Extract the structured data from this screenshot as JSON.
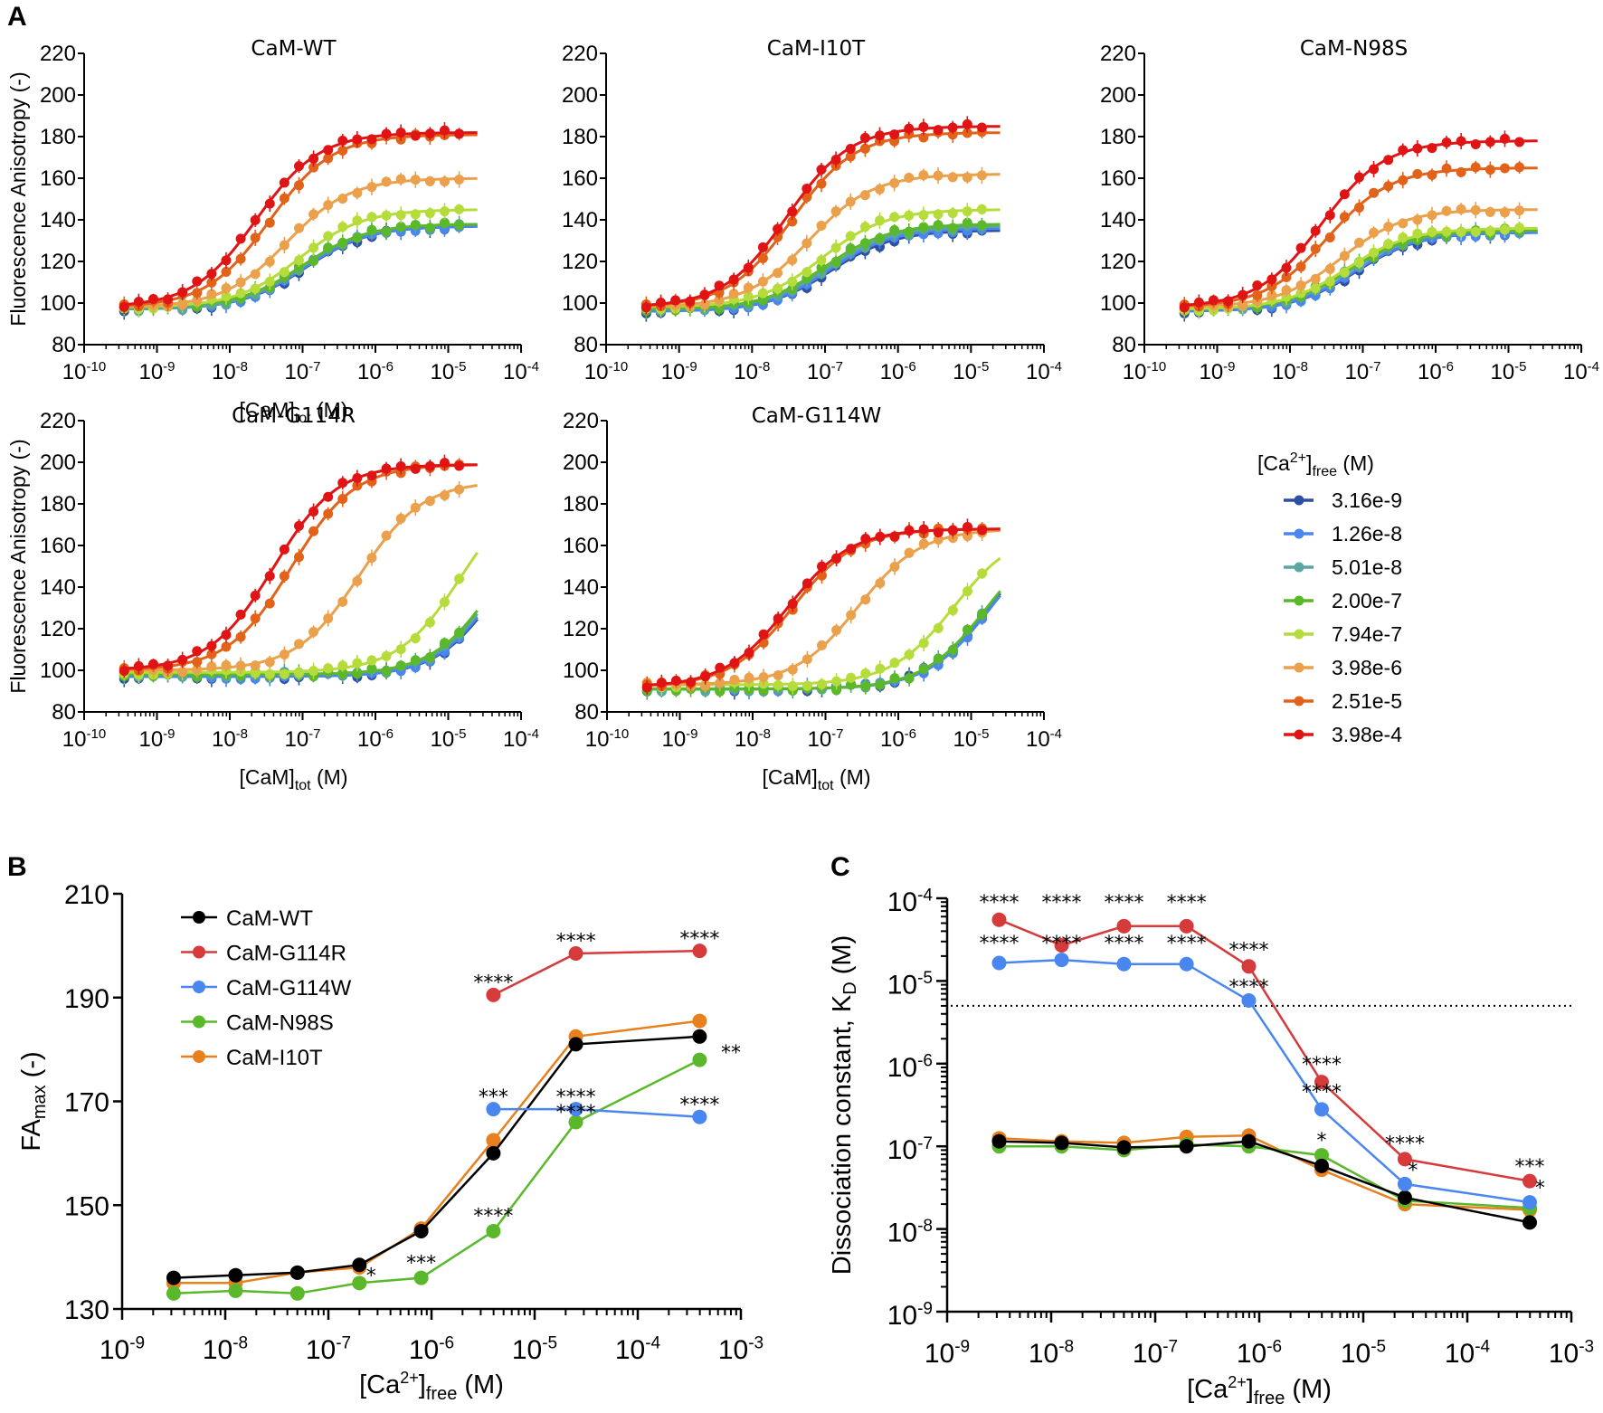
{
  "panel_labels": {
    "a": "A",
    "b": "B",
    "c": "C"
  },
  "legend_A": {
    "title_main": "[Ca",
    "title_sup": "2+",
    "title_close": "]",
    "title_sub": "free",
    "title_unit": " (M)",
    "items": [
      {
        "label": "3.16e-9",
        "color": "#2f4fa2"
      },
      {
        "label": "1.26e-8",
        "color": "#4a86f0"
      },
      {
        "label": "5.01e-8",
        "color": "#5aa6a0"
      },
      {
        "label": "2.00e-7",
        "color": "#5ab82a"
      },
      {
        "label": "7.94e-7",
        "color": "#b5dc3a"
      },
      {
        "label": "3.98e-6",
        "color": "#eba04c"
      },
      {
        "label": "2.51e-5",
        "color": "#e2621a"
      },
      {
        "label": "3.98e-4",
        "color": "#e01414"
      }
    ]
  },
  "chart_data": [
    {
      "type": "line",
      "panel": "A",
      "title": "CaM-WT",
      "xlabel": "[CaM]tot (M)",
      "ylabel": "Fluorescence Anisotropy (-)",
      "xscale": "log",
      "xlim": [
        1e-10,
        0.0001
      ],
      "ylim": [
        80,
        220
      ],
      "yticks": [
        80,
        100,
        120,
        140,
        160,
        180,
        200,
        220
      ],
      "xticks": [
        "10^-10",
        "10^-9",
        "10^-8",
        "10^-7",
        "10^-6",
        "10^-5",
        "10^-4"
      ],
      "series_fit": [
        {
          "ca_free": "3.16e-9",
          "bottom": 97,
          "top": 137,
          "ec50": 1.1e-07
        },
        {
          "ca_free": "1.26e-8",
          "bottom": 97,
          "top": 137,
          "ec50": 1.05e-07
        },
        {
          "ca_free": "5.01e-8",
          "bottom": 97,
          "top": 138,
          "ec50": 1e-07
        },
        {
          "ca_free": "2.00e-7",
          "bottom": 98,
          "top": 138,
          "ec50": 1e-07
        },
        {
          "ca_free": "7.94e-7",
          "bottom": 98,
          "top": 145,
          "ec50": 9e-08
        },
        {
          "ca_free": "3.98e-6",
          "bottom": 98,
          "top": 160,
          "ec50": 6e-08
        },
        {
          "ca_free": "2.51e-5",
          "bottom": 98,
          "top": 181,
          "ec50": 3.5e-08
        },
        {
          "ca_free": "3.98e-4",
          "bottom": 98,
          "top": 182,
          "ec50": 2.3e-08
        }
      ]
    },
    {
      "type": "line",
      "panel": "A",
      "title": "CaM-I10T",
      "xlabel": "",
      "ylabel": "",
      "xscale": "log",
      "xlim": [
        1e-10,
        0.0001
      ],
      "ylim": [
        80,
        220
      ],
      "yticks": [
        80,
        100,
        120,
        140,
        160,
        180,
        200,
        220
      ],
      "xticks": [
        "10^-10",
        "10^-9",
        "10^-8",
        "10^-7",
        "10^-6",
        "10^-5",
        "10^-4"
      ],
      "series_fit": [
        {
          "ca_free": "3.16e-9",
          "bottom": 96,
          "top": 135,
          "ec50": 1.2e-07
        },
        {
          "ca_free": "1.26e-8",
          "bottom": 96,
          "top": 136,
          "ec50": 1.15e-07
        },
        {
          "ca_free": "5.01e-8",
          "bottom": 97,
          "top": 137,
          "ec50": 1.1e-07
        },
        {
          "ca_free": "2.00e-7",
          "bottom": 97,
          "top": 138,
          "ec50": 1e-07
        },
        {
          "ca_free": "7.94e-7",
          "bottom": 98,
          "top": 145,
          "ec50": 9e-08
        },
        {
          "ca_free": "3.98e-6",
          "bottom": 98,
          "top": 162,
          "ec50": 6e-08
        },
        {
          "ca_free": "2.51e-5",
          "bottom": 98,
          "top": 182,
          "ec50": 3.5e-08
        },
        {
          "ca_free": "3.98e-4",
          "bottom": 98,
          "top": 185,
          "ec50": 3e-08
        }
      ]
    },
    {
      "type": "line",
      "panel": "A",
      "title": "CaM-N98S",
      "xlabel": "",
      "ylabel": "",
      "xscale": "log",
      "xlim": [
        1e-10,
        0.0001
      ],
      "ylim": [
        80,
        220
      ],
      "yticks": [
        80,
        100,
        120,
        140,
        160,
        180,
        200,
        220
      ],
      "xticks": [
        "10^-10",
        "10^-9",
        "10^-8",
        "10^-7",
        "10^-6",
        "10^-5",
        "10^-4"
      ],
      "series_fit": [
        {
          "ca_free": "3.16e-9",
          "bottom": 96,
          "top": 134,
          "ec50": 8e-08
        },
        {
          "ca_free": "1.26e-8",
          "bottom": 96,
          "top": 134,
          "ec50": 7.5e-08
        },
        {
          "ca_free": "5.01e-8",
          "bottom": 97,
          "top": 135,
          "ec50": 7e-08
        },
        {
          "ca_free": "2.00e-7",
          "bottom": 97,
          "top": 135,
          "ec50": 6.5e-08
        },
        {
          "ca_free": "7.94e-7",
          "bottom": 97,
          "top": 136,
          "ec50": 6e-08
        },
        {
          "ca_free": "3.98e-6",
          "bottom": 98,
          "top": 145,
          "ec50": 5e-08
        },
        {
          "ca_free": "2.51e-5",
          "bottom": 98,
          "top": 165,
          "ec50": 3.3e-08
        },
        {
          "ca_free": "3.98e-4",
          "bottom": 98,
          "top": 178,
          "ec50": 2.7e-08
        }
      ]
    },
    {
      "type": "line",
      "panel": "A",
      "title": "CaM-G114R",
      "xlabel": "[CaM]tot (M)",
      "ylabel": "Fluorescence Anisotropy (-)",
      "xscale": "log",
      "xlim": [
        1e-10,
        0.0001
      ],
      "ylim": [
        80,
        220
      ],
      "yticks": [
        80,
        100,
        120,
        140,
        160,
        180,
        200,
        220
      ],
      "xticks": [
        "10^-10",
        "10^-9",
        "10^-8",
        "10^-7",
        "10^-6",
        "10^-5",
        "10^-4"
      ],
      "series_fit": [
        {
          "ca_free": "3.16e-9",
          "bottom": 97,
          "top": 185,
          "ec50": 5.5e-05
        },
        {
          "ca_free": "1.26e-8",
          "bottom": 97,
          "top": 185,
          "ec50": 5.2e-05
        },
        {
          "ca_free": "5.01e-8",
          "bottom": 98,
          "top": 185,
          "ec50": 5e-05
        },
        {
          "ca_free": "2.00e-7",
          "bottom": 98,
          "top": 185,
          "ec50": 4.6e-05
        },
        {
          "ca_free": "7.94e-7",
          "bottom": 99,
          "top": 191,
          "ec50": 1.5e-05
        },
        {
          "ca_free": "3.98e-6",
          "bottom": 100,
          "top": 191,
          "ec50": 6e-07
        },
        {
          "ca_free": "2.51e-5",
          "bottom": 100,
          "top": 199,
          "ec50": 7e-08
        },
        {
          "ca_free": "3.98e-4",
          "bottom": 100,
          "top": 199,
          "ec50": 4e-08
        }
      ]
    },
    {
      "type": "line",
      "panel": "A",
      "title": "CaM-G114W",
      "xlabel": "[CaM]tot (M)",
      "ylabel": "",
      "xscale": "log",
      "xlim": [
        1e-10,
        0.0001
      ],
      "ylim": [
        80,
        220
      ],
      "yticks": [
        80,
        100,
        120,
        140,
        160,
        180,
        200,
        220
      ],
      "xticks": [
        "10^-10",
        "10^-9",
        "10^-8",
        "10^-7",
        "10^-6",
        "10^-5",
        "10^-4"
      ],
      "series_fit": [
        {
          "ca_free": "3.16e-9",
          "bottom": 91,
          "top": 168,
          "ec50": 1.7e-05
        },
        {
          "ca_free": "1.26e-8",
          "bottom": 91,
          "top": 168,
          "ec50": 1.8e-05
        },
        {
          "ca_free": "5.01e-8",
          "bottom": 91,
          "top": 168,
          "ec50": 1.6e-05
        },
        {
          "ca_free": "2.00e-7",
          "bottom": 91,
          "top": 168,
          "ec50": 1.6e-05
        },
        {
          "ca_free": "7.94e-7",
          "bottom": 93,
          "top": 168,
          "ec50": 5.8e-06
        },
        {
          "ca_free": "3.98e-6",
          "bottom": 93,
          "top": 168,
          "ec50": 2.8e-07
        },
        {
          "ca_free": "2.51e-5",
          "bottom": 92,
          "top": 168,
          "ec50": 3.5e-08
        },
        {
          "ca_free": "3.98e-4",
          "bottom": 92,
          "top": 168,
          "ec50": 3e-08
        }
      ]
    },
    {
      "type": "line",
      "panel": "B",
      "title": "",
      "xlabel": "[Ca2+]free (M)",
      "ylabel": "FAmax (-)",
      "xscale": "log",
      "xlim": [
        1e-09,
        0.001
      ],
      "ylim": [
        130,
        210
      ],
      "yticks": [
        130,
        150,
        170,
        190,
        210
      ],
      "xticks": [
        "10^-9",
        "10^-8",
        "10^-7",
        "10^-6",
        "10^-5",
        "10^-4",
        "10^-3"
      ],
      "legend": "top-left",
      "x": [
        3.16e-09,
        1.26e-08,
        5.01e-08,
        2e-07,
        7.94e-07,
        3.98e-06,
        2.51e-05,
        0.000398
      ],
      "series": [
        {
          "name": "CaM-WT",
          "color": "#000000",
          "values": [
            136,
            136.5,
            137,
            138.5,
            145,
            160,
            181,
            182.5
          ]
        },
        {
          "name": "CaM-G114R",
          "color": "#d63a3a",
          "values": [
            null,
            null,
            null,
            null,
            null,
            190.5,
            198.5,
            199
          ]
        },
        {
          "name": "CaM-G114W",
          "color": "#4a86f0",
          "values": [
            null,
            null,
            null,
            null,
            null,
            168.5,
            168.5,
            167
          ]
        },
        {
          "name": "CaM-N98S",
          "color": "#5ab82a",
          "values": [
            133,
            133.5,
            133,
            135,
            136,
            145,
            166,
            178
          ]
        },
        {
          "name": "CaM-I10T",
          "color": "#e8801e",
          "values": [
            135,
            135,
            137,
            138,
            145.5,
            162.5,
            182.5,
            185.5
          ]
        }
      ],
      "annotations": [
        {
          "text": "*",
          "x": 2.6e-07,
          "y": 136.5
        },
        {
          "text": "***",
          "x": 7.94e-07,
          "y": 139
        },
        {
          "text": "****",
          "x": 3.98e-06,
          "y": 148
        },
        {
          "text": "***",
          "x": 3.98e-06,
          "y": 171
        },
        {
          "text": "****",
          "x": 3.98e-06,
          "y": 193
        },
        {
          "text": "****",
          "x": 2.51e-05,
          "y": 171
        },
        {
          "text": "****",
          "x": 2.51e-05,
          "y": 168
        },
        {
          "text": "****",
          "x": 2.51e-05,
          "y": 201
        },
        {
          "text": "****",
          "x": 0.000398,
          "y": 201.5
        },
        {
          "text": "****",
          "x": 0.000398,
          "y": 169.5
        },
        {
          "text": "**",
          "x": 0.0008,
          "y": 179.5
        }
      ]
    },
    {
      "type": "line",
      "panel": "C",
      "title": "",
      "xlabel": "[Ca2+]free (M)",
      "ylabel": "Dissociation constant, KD (M)",
      "xscale": "log",
      "yscale": "log",
      "xlim": [
        1e-09,
        0.001
      ],
      "ylim": [
        1e-09,
        0.0001
      ],
      "yticks": [
        "10^-9",
        "10^-8",
        "10^-7",
        "10^-6",
        "10^-5",
        "10^-4"
      ],
      "xticks": [
        "10^-9",
        "10^-8",
        "10^-7",
        "10^-6",
        "10^-5",
        "10^-4",
        "10^-3"
      ],
      "reference_line": {
        "y": 5e-06,
        "style": "dotted"
      },
      "x": [
        3.16e-09,
        1.26e-08,
        5.01e-08,
        2e-07,
        7.94e-07,
        3.98e-06,
        2.51e-05,
        0.000398
      ],
      "series": [
        {
          "name": "CaM-WT",
          "color": "#000000",
          "values": [
            1.15e-07,
            1.1e-07,
            9.7e-08,
            1e-07,
            1.15e-07,
            5.8e-08,
            2.4e-08,
            1.2e-08
          ]
        },
        {
          "name": "CaM-G114R",
          "color": "#d63a3a",
          "values": [
            5.5e-05,
            2.7e-05,
            4.6e-05,
            4.6e-05,
            1.5e-05,
            6e-07,
            7e-08,
            3.8e-08
          ]
        },
        {
          "name": "CaM-G114W",
          "color": "#4a86f0",
          "values": [
            1.65e-05,
            1.8e-05,
            1.6e-05,
            1.6e-05,
            5.8e-06,
            2.8e-07,
            3.5e-08,
            2.1e-08
          ]
        },
        {
          "name": "CaM-N98S",
          "color": "#5ab82a",
          "values": [
            1e-07,
            1e-07,
            9e-08,
            1.05e-07,
            1e-07,
            7.8e-08,
            2.2e-08,
            1.8e-08
          ]
        },
        {
          "name": "CaM-I10T",
          "color": "#e8801e",
          "values": [
            1.25e-07,
            1.15e-07,
            1.1e-07,
            1.3e-07,
            1.35e-07,
            5.2e-08,
            2e-08,
            1.7e-08
          ]
        }
      ],
      "annotations": [
        {
          "text": "****",
          "x": 3.16e-09,
          "y": 9e-05
        },
        {
          "text": "****",
          "x": 1.26e-08,
          "y": 9e-05
        },
        {
          "text": "****",
          "x": 5.01e-08,
          "y": 9e-05
        },
        {
          "text": "****",
          "x": 2e-07,
          "y": 9e-05
        },
        {
          "text": "****",
          "x": 3.16e-09,
          "y": 2.9e-05
        },
        {
          "text": "****",
          "x": 1.26e-08,
          "y": 2.9e-05
        },
        {
          "text": "****",
          "x": 5.01e-08,
          "y": 2.9e-05
        },
        {
          "text": "****",
          "x": 2e-07,
          "y": 2.9e-05
        },
        {
          "text": "****",
          "x": 7.94e-07,
          "y": 2.4e-05
        },
        {
          "text": "****",
          "x": 7.94e-07,
          "y": 8.6e-06
        },
        {
          "text": "****",
          "x": 3.98e-06,
          "y": 1e-06
        },
        {
          "text": "****",
          "x": 3.98e-06,
          "y": 4.6e-07
        },
        {
          "text": "*",
          "x": 3.98e-06,
          "y": 1.2e-07
        },
        {
          "text": "****",
          "x": 2.51e-05,
          "y": 1.1e-07
        },
        {
          "text": "*",
          "x": 3e-05,
          "y": 5.2e-08
        },
        {
          "text": "***",
          "x": 0.000398,
          "y": 5.8e-08
        },
        {
          "text": "*",
          "x": 0.0005,
          "y": 3.2e-08
        }
      ]
    }
  ]
}
